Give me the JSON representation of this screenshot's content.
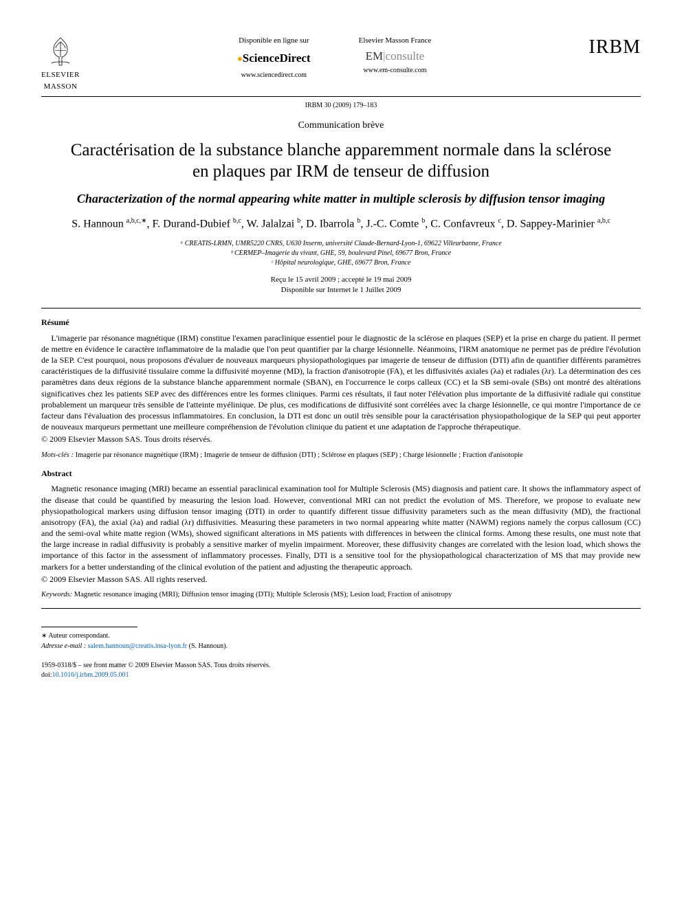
{
  "header": {
    "publisher_line1": "ELSEVIER",
    "publisher_line2": "MASSON",
    "online_label": "Disponible en ligne sur",
    "sd_name": "ScienceDirect",
    "sd_url": "www.sciencedirect.com",
    "em_label": "Elsevier Masson France",
    "em_prefix": "EM",
    "em_suffix": "consulte",
    "em_url": "www.em-consulte.com",
    "journal_logo": "IRBM"
  },
  "journal_ref": "IRBM 30 (2009) 179–183",
  "article_type": "Communication brève",
  "title_fr": "Caractérisation de la substance blanche apparemment normale dans la sclérose en plaques par IRM de tenseur de diffusion",
  "title_en": "Characterization of the normal appearing white matter in multiple sclerosis by diffusion tensor imaging",
  "authors_html": "S. Hannoun <sup>a,b,c,∗</sup>, F. Durand-Dubief <sup>b,c</sup>, W. Jalalzai <sup>b</sup>, D. Ibarrola <sup>b</sup>, J.-C. Comte <sup>b</sup>, C. Confavreux <sup>c</sup>, D. Sappey-Marinier <sup>a,b,c</sup>",
  "affiliations": [
    "ᵃ CREATIS-LRMN, UMR5220 CNRS, U630 Inserm, université Claude-Bernard-Lyon-1, 69622 Villeurbanne, France",
    "ᵇ CERMEP–Imagerie du vivant, GHE, 59, boulevard Pinel, 69677 Bron, France",
    "ᶜ Hôpital neurologique, GHE, 69677 Bron, France"
  ],
  "dates": {
    "received_accepted": "Reçu le 15 avril 2009 ; accepté le 19 mai 2009",
    "online": "Disponible sur Internet le 1 Juillet 2009"
  },
  "resume": {
    "heading": "Résumé",
    "body": "L'imagerie par résonance magnétique (IRM) constitue l'examen paraclinique essentiel pour le diagnostic de la sclérose en plaques (SEP) et la prise en charge du patient. Il permet de mettre en évidence le caractère inflammatoire de la maladie que l'on peut quantifier par la charge lésionnelle. Néanmoins, l'IRM anatomique ne permet pas de prédire l'évolution de la SEP. C'est pourquoi, nous proposons d'évaluer de nouveaux marqueurs physiopathologiques par imagerie de tenseur de diffusion (DTI) afin de quantifier différents paramètres caractéristiques de la diffusivité tissulaire comme la diffusivité moyenne (MD), la fraction d'anisotropie (FA), et les diffusivités axiales (λa) et radiales (λr). La détermination des ces paramètres dans deux régions de la substance blanche apparemment normale (SBAN), en l'occurrence le corps calleux (CC) et la SB semi-ovale (SBs) ont montré des altérations significatives chez les patients SEP avec des différences entre les formes cliniques. Parmi ces résultats, il faut noter l'élévation plus importante de la diffusivité radiale qui constitue probablement un marqueur très sensible de l'atteinte myélinique. De plus, ces modifications de diffusivité sont corrélées avec la charge lésionnelle, ce qui montre l'importance de ce facteur dans l'évaluation des processus inflammatoires. En conclusion, la DTI est donc un outil très sensible pour la caractérisation physiopathologique de la SEP qui peut apporter de nouveaux marqueurs permettant une meilleure compréhension de l'évolution clinique du patient et une adaptation de l'approche thérapeutique.",
    "copyright": "© 2009 Elsevier Masson SAS. Tous droits réservés."
  },
  "mots_cles": {
    "label": "Mots-clés :",
    "text": "Imagerie par résonance magnétique (IRM) ; Imagerie de tenseur de diffusion (DTI) ; Sclérose en plaques (SEP) ; Charge lésionnelle ; Fraction d'anisotopie"
  },
  "abstract": {
    "heading": "Abstract",
    "body": "Magnetic resonance imaging (MRI) became an essential paraclinical examination tool for Multiple Sclerosis (MS) diagnosis and patient care. It shows the inflammatory aspect of the disease that could be quantified by measuring the lesion load. However, conventional MRI can not predict the evolution of MS. Therefore, we propose to evaluate new physiopathological markers using diffusion tensor imaging (DTI) in order to quantify different tissue diffusivity parameters such as the mean diffusivity (MD), the fractional anisotropy (FA), the axial (λa) and radial (λr) diffusivities. Measuring these parameters in two normal appearing white matter (NAWM) regions namely the corpus callosum (CC) and the semi-oval white matte region (WMs), showed significant alterations in MS patients with differences in between the clinical forms. Among these results, one must note that the large increase in radial diffusivity is probably a sensitive marker of myelin impairment. Moreover, these diffusivity changes are correlated with the lesion load, which shows the importance of this factor in the assessment of inflammatory processes. Finally, DTI is a sensitive tool for the physiopathological characterization of MS that may provide new markers for a better understanding of the clinical evolution of the patient and adjusting the therapeutic approach.",
    "copyright": "© 2009 Elsevier Masson SAS. All rights reserved."
  },
  "keywords": {
    "label": "Keywords:",
    "text": "Magnetic resonance imaging (MRI); Diffusion tensor imaging (DTI); Multiple Sclerosis (MS); Lesion load; Fraction of anisotropy"
  },
  "footnotes": {
    "corresp_label": "∗ Auteur correspondant.",
    "email_label": "Adresse e-mail :",
    "email": "salem.hannoun@creatis.insa-lyon.fr",
    "email_suffix": "(S. Hannoun)."
  },
  "footer": {
    "issn_line": "1959-0318/$ – see front matter © 2009 Elsevier Masson SAS. Tous droits réservés.",
    "doi_prefix": "doi:",
    "doi": "10.1016/j.irbm.2009.05.001"
  },
  "colors": {
    "text": "#000000",
    "link": "#0066cc",
    "sd_bullet": "#f7a600",
    "em_gray": "#888888",
    "background": "#ffffff"
  },
  "typography": {
    "body_pt": 13,
    "title_fr_pt": 25,
    "title_en_pt": 18,
    "authors_pt": 16,
    "abstract_pt": 12,
    "footnote_pt": 10,
    "font_family": "Times New Roman"
  }
}
